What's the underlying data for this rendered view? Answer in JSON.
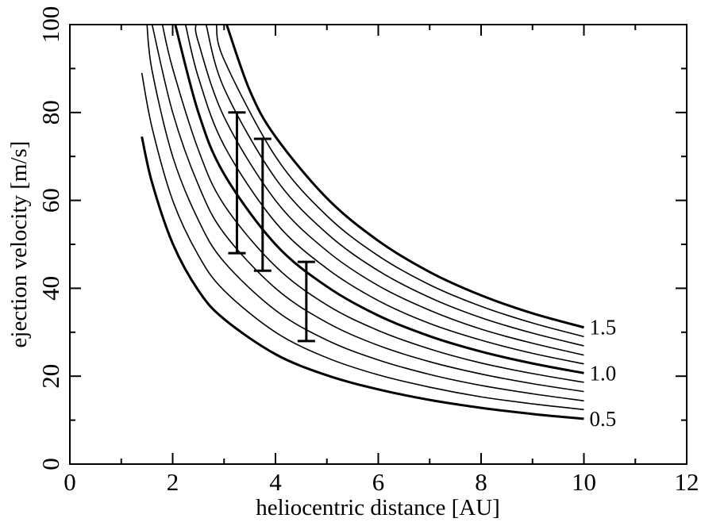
{
  "chart_data": {
    "type": "line",
    "title": "",
    "xlabel": "heliocentric distance [AU]",
    "ylabel": "ejection velocity [m/s]",
    "xlim": [
      0,
      12
    ],
    "ylim": [
      0,
      100
    ],
    "x_major_ticks": [
      0,
      2,
      4,
      6,
      8,
      10,
      12
    ],
    "x_minor_ticks": [
      1,
      3,
      5,
      7,
      9,
      11
    ],
    "y_major_ticks": [
      0,
      20,
      40,
      60,
      80,
      100
    ],
    "y_minor_ticks": [
      10,
      30,
      50,
      70,
      90
    ],
    "grid": false,
    "legend": "none",
    "line_color": "#000000",
    "series": [
      {
        "label": "0.5",
        "highlighted": true,
        "x": [
          1.4,
          1.6,
          2.0,
          2.5,
          3.0,
          4.0,
          5.0,
          6.0,
          7.0,
          8.0,
          9.0,
          10.0
        ],
        "y": [
          74.5,
          64.0,
          50.2,
          39.5,
          33.0,
          25.0,
          20.2,
          17.0,
          14.6,
          12.8,
          11.4,
          10.3
        ]
      },
      {
        "label": "",
        "highlighted": false,
        "x": [
          1.4,
          1.6,
          2.0,
          2.5,
          3.0,
          4.0,
          5.0,
          6.0,
          7.0,
          8.0,
          9.0,
          10.0
        ],
        "y": [
          89.0,
          76.5,
          60.0,
          47.5,
          39.5,
          30.0,
          24.2,
          20.3,
          17.5,
          15.3,
          13.7,
          12.4
        ]
      },
      {
        "label": "",
        "highlighted": false,
        "x": [
          1.5,
          1.6,
          2.0,
          2.5,
          3.0,
          4.0,
          5.0,
          6.0,
          7.0,
          8.0,
          9.0,
          10.0
        ],
        "y": [
          100.0,
          89.5,
          70.0,
          55.5,
          46.0,
          35.0,
          28.2,
          23.7,
          20.4,
          17.9,
          16.0,
          14.4
        ]
      },
      {
        "label": "",
        "highlighted": false,
        "x": [
          1.6,
          2.0,
          2.5,
          3.0,
          4.0,
          5.0,
          6.0,
          7.0,
          8.0,
          9.0,
          10.0
        ],
        "y": [
          100.0,
          80.0,
          63.5,
          52.5,
          40.0,
          32.2,
          27.0,
          23.3,
          20.5,
          18.3,
          16.5
        ]
      },
      {
        "label": "",
        "highlighted": false,
        "x": [
          1.8,
          2.0,
          2.5,
          3.0,
          4.0,
          5.0,
          6.0,
          7.0,
          8.0,
          9.0,
          10.0
        ],
        "y": [
          100.0,
          90.0,
          71.5,
          59.0,
          45.0,
          36.2,
          30.4,
          26.2,
          23.0,
          20.6,
          18.6
        ]
      },
      {
        "label": "1.0",
        "highlighted": true,
        "x": [
          2.05,
          2.5,
          3.0,
          4.0,
          5.0,
          6.0,
          7.0,
          8.0,
          9.0,
          10.0
        ],
        "y": [
          100.0,
          80.0,
          66.0,
          50.0,
          40.4,
          33.8,
          29.1,
          25.6,
          22.9,
          20.7
        ]
      },
      {
        "label": "",
        "highlighted": false,
        "x": [
          2.25,
          2.5,
          3.0,
          4.0,
          5.0,
          6.0,
          7.0,
          8.0,
          9.0,
          10.0
        ],
        "y": [
          100.0,
          88.0,
          72.5,
          55.0,
          44.5,
          37.2,
          32.0,
          28.2,
          25.2,
          22.8
        ]
      },
      {
        "label": "",
        "highlighted": false,
        "x": [
          2.45,
          2.5,
          3.0,
          4.0,
          5.0,
          6.0,
          7.0,
          8.0,
          9.0,
          10.0
        ],
        "y": [
          100.0,
          96.0,
          79.0,
          60.0,
          48.5,
          40.6,
          35.0,
          30.7,
          27.5,
          24.8
        ]
      },
      {
        "label": "",
        "highlighted": false,
        "x": [
          2.65,
          3.0,
          4.0,
          5.0,
          6.0,
          7.0,
          8.0,
          9.0,
          10.0
        ],
        "y": [
          100.0,
          85.5,
          65.0,
          52.5,
          44.0,
          37.9,
          33.3,
          29.8,
          26.9
        ]
      },
      {
        "label": "",
        "highlighted": false,
        "x": [
          2.85,
          3.0,
          4.0,
          5.0,
          6.0,
          7.0,
          8.0,
          9.0,
          10.0
        ],
        "y": [
          100.0,
          92.0,
          70.0,
          56.5,
          47.4,
          40.8,
          35.9,
          32.1,
          29.0
        ]
      },
      {
        "label": "1.5",
        "highlighted": true,
        "x": [
          3.05,
          3.5,
          4.0,
          5.0,
          6.0,
          7.0,
          8.0,
          9.0,
          10.0
        ],
        "y": [
          100.0,
          85.0,
          74.5,
          60.5,
          50.8,
          43.7,
          38.4,
          34.3,
          31.1
        ]
      }
    ],
    "error_bars": [
      {
        "x": 3.25,
        "ymin": 48,
        "ymax": 80
      },
      {
        "x": 3.75,
        "ymin": 44,
        "ymax": 74
      },
      {
        "x": 4.6,
        "ymin": 28,
        "ymax": 46
      }
    ]
  }
}
